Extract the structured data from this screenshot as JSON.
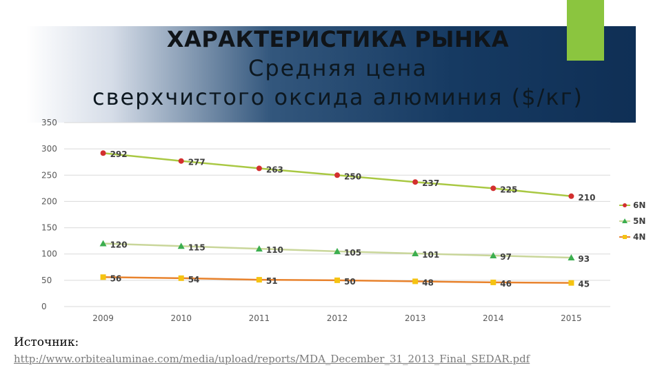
{
  "header": {
    "title": "ХАРАКТЕРИСТИКА РЫНКА",
    "subtitle_line1": "Средняя цена",
    "subtitle_line2": "сверхчистого оксида алюминия ($/кг)"
  },
  "chart_data": {
    "type": "line",
    "x": [
      "2009",
      "2010",
      "2011",
      "2012",
      "2013",
      "2014",
      "2015"
    ],
    "ylim": [
      0,
      350
    ],
    "yticks": [
      "0",
      "50",
      "100",
      "150",
      "200",
      "250",
      "300",
      "350"
    ],
    "grid": true,
    "legend_position": "right",
    "series": [
      {
        "name": "6N",
        "values": [
          292,
          277,
          263,
          250,
          237,
          225,
          210
        ],
        "color": "#a9c843",
        "marker": "circle",
        "marker_color": "#d32f2f"
      },
      {
        "name": "5N",
        "values": [
          120,
          115,
          110,
          105,
          101,
          97,
          93
        ],
        "color": "#c9d69a",
        "marker": "triangle",
        "marker_color": "#3cae4f"
      },
      {
        "name": "4N",
        "values": [
          56,
          54,
          51,
          50,
          48,
          46,
          45
        ],
        "color": "#e8822c",
        "marker": "square",
        "marker_color": "#f5c311"
      }
    ]
  },
  "source": {
    "label": "Источник:",
    "link": "http://www.orbitealuminae.com/media/upload/reports/MDA_December_31_2013_Final_SEDAR.pdf"
  }
}
